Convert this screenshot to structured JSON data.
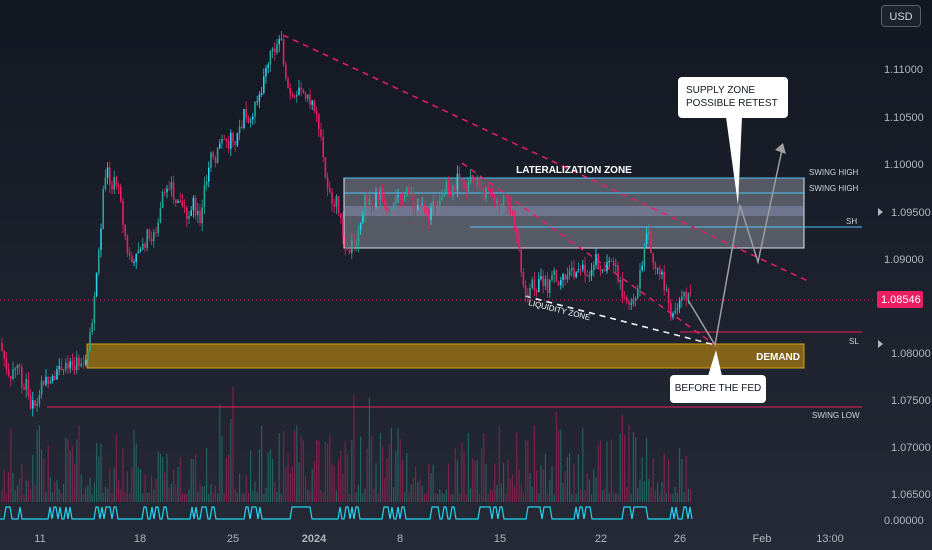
{
  "currency": "USD",
  "price_axis": {
    "ticks": [
      "1.11000",
      "1.10500",
      "1.10000",
      "1.09500",
      "1.09000",
      "1.08000",
      "1.07500",
      "1.07000",
      "1.06500",
      "0.00000"
    ],
    "current_price": "1.08546"
  },
  "time_axis": {
    "ticks": [
      "11",
      "18",
      "25",
      "2024",
      "8",
      "15",
      "22",
      "26",
      "Feb",
      "13:00"
    ]
  },
  "annotations": {
    "lateralization_zone": "LATERALIZATION ZONE",
    "liquidity_zone": "LIQUIDITY ZONE",
    "demand": "DEMAND",
    "swing_high_1": "SWING HIGH",
    "swing_high_2": "SWING HIGH",
    "sh": "SH",
    "sl": "SL",
    "swing_low": "SWING LOW",
    "supply_callout_line1": "SUPPLY ZONE",
    "supply_callout_line2": "POSSIBLE RETEST",
    "fed_callout": "BEFORE THE FED"
  },
  "colors": {
    "background": "#1e222d",
    "bull": "#26a69a",
    "bull_bright": "#22d3ee",
    "bear": "#e91e63",
    "demand_zone": "#d4a017",
    "lateral_zone": "#ffffff",
    "trendline": "#e91e63",
    "projection": "#9e9e9e",
    "text": "#d1d4dc",
    "price_label_bg": "#e91e63"
  },
  "chart_data": {
    "type": "candlestick",
    "symbol_quote": "USD",
    "ylim": [
      1.0625,
      1.1145
    ],
    "x": [
      "11",
      "18",
      "25",
      "2024",
      "8",
      "15",
      "22",
      "26",
      "Feb"
    ],
    "ohlc_path": [
      [
        0,
        1.081
      ],
      [
        5,
        1.079
      ],
      [
        10,
        1.0775
      ],
      [
        14,
        1.0785
      ],
      [
        18,
        1.079
      ],
      [
        22,
        1.076
      ],
      [
        26,
        1.077
      ],
      [
        30,
        1.0745
      ],
      [
        36,
        1.0742
      ],
      [
        40,
        1.076
      ],
      [
        44,
        1.077
      ],
      [
        50,
        1.0775
      ],
      [
        56,
        1.078
      ],
      [
        60,
        1.079
      ],
      [
        66,
        1.0782
      ],
      [
        72,
        1.0785
      ],
      [
        78,
        1.0792
      ],
      [
        84,
        1.0795
      ],
      [
        88,
        1.08
      ],
      [
        92,
        1.083
      ],
      [
        96,
        1.088
      ],
      [
        100,
        1.092
      ],
      [
        104,
        1.098
      ],
      [
        108,
        1.099
      ],
      [
        112,
        1.0975
      ],
      [
        116,
        1.0985
      ],
      [
        120,
        1.096
      ],
      [
        124,
        1.093
      ],
      [
        128,
        1.0905
      ],
      [
        132,
        1.0895
      ],
      [
        136,
        1.091
      ],
      [
        140,
        1.0905
      ],
      [
        144,
        1.0915
      ],
      [
        148,
        1.0925
      ],
      [
        152,
        1.092
      ],
      [
        156,
        1.093
      ],
      [
        160,
        1.0955
      ],
      [
        164,
        1.098
      ],
      [
        168,
        1.0965
      ],
      [
        172,
        1.0975
      ],
      [
        176,
        1.0955
      ],
      [
        180,
        1.0965
      ],
      [
        184,
        1.095
      ],
      [
        188,
        1.0945
      ],
      [
        192,
        1.096
      ],
      [
        196,
        1.095
      ],
      [
        200,
        1.094
      ],
      [
        204,
        1.097
      ],
      [
        208,
        1.0985
      ],
      [
        212,
        1.101
      ],
      [
        216,
        1.1005
      ],
      [
        220,
        1.1025
      ],
      [
        224,
        1.103
      ],
      [
        228,
        1.1015
      ],
      [
        232,
        1.1035
      ],
      [
        236,
        1.102
      ],
      [
        240,
        1.1035
      ],
      [
        244,
        1.1055
      ],
      [
        248,
        1.1045
      ],
      [
        252,
        1.105
      ],
      [
        256,
        1.106
      ],
      [
        260,
        1.1075
      ],
      [
        264,
        1.109
      ],
      [
        268,
        1.111
      ],
      [
        272,
        1.112
      ],
      [
        276,
        1.1125
      ],
      [
        280,
        1.1135
      ],
      [
        284,
        1.111
      ],
      [
        288,
        1.108
      ],
      [
        292,
        1.1075
      ],
      [
        296,
        1.108
      ],
      [
        300,
        1.107
      ],
      [
        304,
        1.1075
      ],
      [
        308,
        1.1065
      ],
      [
        312,
        1.106
      ],
      [
        316,
        1.105
      ],
      [
        320,
        1.104
      ],
      [
        324,
        1.1
      ],
      [
        328,
        1.0965
      ],
      [
        332,
        1.0965
      ],
      [
        336,
        1.096
      ],
      [
        340,
        1.094
      ],
      [
        344,
        1.092
      ],
      [
        348,
        1.0905
      ],
      [
        352,
        1.0915
      ],
      [
        356,
        1.092
      ],
      [
        360,
        1.0935
      ],
      [
        364,
        1.096
      ],
      [
        368,
        1.0965
      ],
      [
        372,
        1.0955
      ],
      [
        376,
        1.0965
      ],
      [
        380,
        1.097
      ],
      [
        384,
        1.096
      ],
      [
        388,
        1.0955
      ],
      [
        392,
        1.096
      ],
      [
        396,
        1.097
      ],
      [
        400,
        1.096
      ],
      [
        404,
        1.0965
      ],
      [
        408,
        1.097
      ],
      [
        412,
        1.096
      ],
      [
        416,
        1.095
      ],
      [
        420,
        1.0955
      ],
      [
        424,
        1.095
      ],
      [
        428,
        1.0945
      ],
      [
        432,
        1.095
      ],
      [
        436,
        1.096
      ],
      [
        440,
        1.0965
      ],
      [
        444,
        1.097
      ],
      [
        448,
        1.0975
      ],
      [
        452,
        1.0965
      ],
      [
        456,
        1.098
      ],
      [
        460,
        1.0985
      ],
      [
        464,
        1.097
      ],
      [
        468,
        1.0985
      ],
      [
        472,
        1.099
      ],
      [
        476,
        1.0985
      ],
      [
        480,
        1.0975
      ],
      [
        484,
        1.097
      ],
      [
        488,
        1.0965
      ],
      [
        492,
        1.097
      ],
      [
        496,
        1.096
      ],
      [
        500,
        1.0955
      ],
      [
        504,
        1.0965
      ],
      [
        508,
        1.096
      ],
      [
        512,
        1.095
      ],
      [
        516,
        1.093
      ],
      [
        520,
        1.09
      ],
      [
        524,
        1.087
      ],
      [
        528,
        1.0865
      ],
      [
        532,
        1.0875
      ],
      [
        536,
        1.087
      ],
      [
        540,
        1.088
      ],
      [
        544,
        1.0875
      ],
      [
        548,
        1.087
      ],
      [
        552,
        1.0885
      ],
      [
        556,
        1.088
      ],
      [
        560,
        1.087
      ],
      [
        564,
        1.088
      ],
      [
        568,
        1.0875
      ],
      [
        572,
        1.089
      ],
      [
        576,
        1.088
      ],
      [
        580,
        1.0885
      ],
      [
        584,
        1.089
      ],
      [
        588,
        1.0885
      ],
      [
        592,
        1.0895
      ],
      [
        596,
        1.09
      ],
      [
        600,
        1.089
      ],
      [
        604,
        1.0885
      ],
      [
        608,
        1.0895
      ],
      [
        612,
        1.089
      ],
      [
        616,
        1.0885
      ],
      [
        620,
        1.0875
      ],
      [
        624,
        1.086
      ],
      [
        628,
        1.0845
      ],
      [
        632,
        1.0855
      ],
      [
        636,
        1.0865
      ],
      [
        640,
        1.0885
      ],
      [
        644,
        1.091
      ],
      [
        648,
        1.0925
      ],
      [
        652,
        1.0905
      ],
      [
        656,
        1.089
      ],
      [
        660,
        1.0885
      ],
      [
        664,
        1.087
      ],
      [
        668,
        1.0855
      ],
      [
        672,
        1.084
      ],
      [
        676,
        1.0845
      ],
      [
        680,
        1.085
      ],
      [
        684,
        1.086
      ],
      [
        688,
        1.0865
      ],
      [
        692,
        1.0855
      ]
    ],
    "zones": {
      "lateralization": [
        1.0912,
        1.0985
      ],
      "demand": [
        1.0782,
        1.0808
      ],
      "swing_high_levels": [
        1.0985,
        1.0965
      ],
      "sh_level": 1.0933,
      "sl_level": 1.0822,
      "swing_low_level": 1.0742,
      "current_price": 1.08546
    }
  }
}
